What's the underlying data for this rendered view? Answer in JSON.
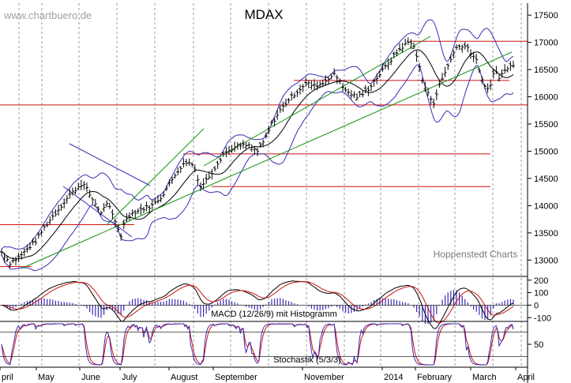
{
  "chart_data": {
    "type": "line",
    "title": "MDAX",
    "watermark": "www.chartbuero.de",
    "source": "Hoppenstedt Charts",
    "price": {
      "yticks": [
        13000,
        13500,
        14000,
        14500,
        15000,
        15500,
        16000,
        16500,
        17000,
        17500
      ],
      "ylim": [
        12700,
        17720
      ],
      "x_range": [
        0,
        360
      ],
      "close": [
        [
          0,
          13150
        ],
        [
          6,
          12950
        ],
        [
          12,
          13050
        ],
        [
          18,
          13200
        ],
        [
          24,
          13350
        ],
        [
          30,
          13600
        ],
        [
          36,
          13800
        ],
        [
          42,
          14000
        ],
        [
          48,
          14200
        ],
        [
          54,
          14350
        ],
        [
          57,
          14420
        ],
        [
          60,
          14300
        ],
        [
          63,
          14150
        ],
        [
          67,
          14000
        ],
        [
          70,
          13850
        ],
        [
          73,
          14050
        ],
        [
          76,
          13950
        ],
        [
          80,
          13700
        ],
        [
          84,
          13450
        ],
        [
          87,
          13750
        ],
        [
          91,
          13850
        ],
        [
          95,
          13900
        ],
        [
          100,
          13950
        ],
        [
          106,
          14000
        ],
        [
          112,
          14150
        ],
        [
          118,
          14400
        ],
        [
          124,
          14650
        ],
        [
          130,
          14800
        ],
        [
          135,
          14750
        ],
        [
          140,
          14350
        ],
        [
          145,
          14500
        ],
        [
          150,
          14700
        ],
        [
          156,
          14950
        ],
        [
          162,
          15050
        ],
        [
          168,
          15100
        ],
        [
          174,
          15100
        ],
        [
          180,
          15000
        ],
        [
          185,
          15200
        ],
        [
          190,
          15500
        ],
        [
          196,
          15750
        ],
        [
          202,
          15950
        ],
        [
          208,
          16100
        ],
        [
          214,
          16250
        ],
        [
          220,
          16200
        ],
        [
          226,
          16250
        ],
        [
          230,
          16350
        ],
        [
          234,
          16400
        ],
        [
          238,
          16300
        ],
        [
          242,
          16100
        ],
        [
          246,
          16050
        ],
        [
          250,
          16000
        ],
        [
          254,
          16050
        ],
        [
          258,
          16150
        ],
        [
          264,
          16350
        ],
        [
          270,
          16550
        ],
        [
          276,
          16750
        ],
        [
          281,
          16900
        ],
        [
          286,
          17000
        ],
        [
          290,
          16950
        ],
        [
          293,
          16650
        ],
        [
          296,
          16300
        ],
        [
          300,
          16050
        ],
        [
          304,
          15900
        ],
        [
          308,
          16200
        ],
        [
          312,
          16450
        ],
        [
          316,
          16700
        ],
        [
          320,
          16900
        ],
        [
          324,
          16950
        ],
        [
          328,
          16900
        ],
        [
          332,
          16750
        ],
        [
          335,
          16600
        ],
        [
          338,
          16300
        ],
        [
          341,
          16100
        ],
        [
          344,
          16250
        ],
        [
          347,
          16500
        ],
        [
          350,
          16350
        ],
        [
          353,
          16450
        ],
        [
          356,
          16550
        ],
        [
          358,
          16600
        ]
      ],
      "support_lines": [
        16300,
        15850,
        14950,
        14350,
        13650
      ],
      "resistance_line": 17020,
      "month_labels": [
        "pril",
        "May",
        "June",
        "July",
        "August",
        "September",
        "November",
        "2014",
        "February",
        "March",
        "April"
      ]
    },
    "macd": {
      "label": "MACD (12/26/9) mit Histogramm",
      "yticks": [
        200,
        100,
        0,
        -100
      ],
      "ylim": [
        -130,
        230
      ]
    },
    "stochastic": {
      "label": "Stochastik (5/3/3)",
      "yticks": [
        50
      ],
      "ylim": [
        0,
        100
      ]
    },
    "colors": {
      "price": "#000000",
      "bollinger": "#3a2bb5",
      "support": "#d01010",
      "trend": "#109010",
      "macd_line": "#000000",
      "macd_signal": "#d01010",
      "histogram": "#3a2bb5",
      "stoch_k": "#3a2bb5",
      "stoch_d": "#d01010"
    }
  }
}
